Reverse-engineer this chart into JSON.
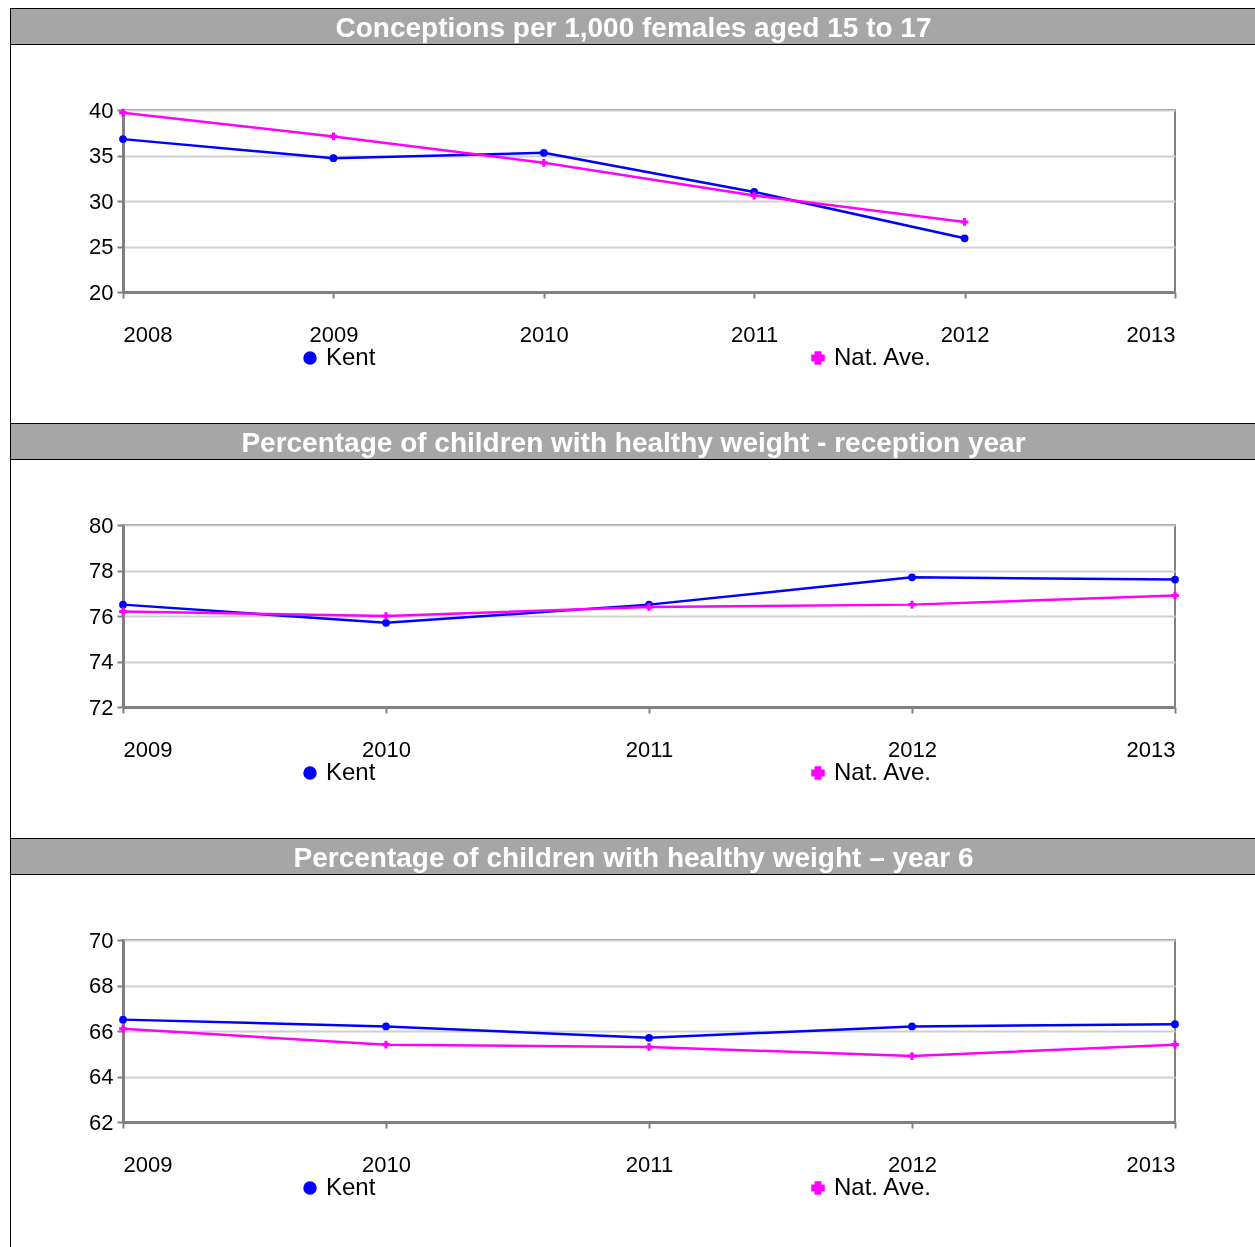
{
  "chart_data": [
    {
      "type": "line",
      "title": "Conceptions per 1,000 females aged 15 to 17",
      "x": [
        2008,
        2009,
        2010,
        2011,
        2012
      ],
      "xlim": [
        2008,
        2013
      ],
      "xticks": [
        2008,
        2009,
        2010,
        2011,
        2012,
        2013
      ],
      "ylim": [
        20,
        40
      ],
      "yticks": [
        20,
        25,
        30,
        35,
        40
      ],
      "grid": "y",
      "legend": "bottom",
      "series": [
        {
          "name": "Kent",
          "color": "#0000ff",
          "marker": "circle",
          "values": [
            36.8,
            34.7,
            35.3,
            31.0,
            25.9
          ]
        },
        {
          "name": "Nat. Ave.",
          "color": "#ff00ff",
          "marker": "cross",
          "values": [
            39.7,
            37.1,
            34.2,
            30.6,
            27.7
          ]
        }
      ]
    },
    {
      "type": "line",
      "title": "Percentage of children with healthy weight - reception year",
      "x": [
        2009,
        2010,
        2011,
        2012,
        2013
      ],
      "xlim": [
        2009,
        2013
      ],
      "xticks": [
        2009,
        2010,
        2011,
        2012,
        2013
      ],
      "ylim": [
        72,
        80
      ],
      "yticks": [
        72,
        74,
        76,
        78,
        80
      ],
      "grid": "y",
      "legend": "bottom",
      "series": [
        {
          "name": "Kent",
          "color": "#0000ff",
          "marker": "circle",
          "values": [
            76.5,
            75.7,
            76.5,
            77.7,
            77.6
          ]
        },
        {
          "name": "Nat. Ave.",
          "color": "#ff00ff",
          "marker": "cross",
          "values": [
            76.2,
            76.0,
            76.4,
            76.5,
            76.9
          ]
        }
      ]
    },
    {
      "type": "line",
      "title": "Percentage of children with healthy weight – year 6",
      "x": [
        2009,
        2010,
        2011,
        2012,
        2013
      ],
      "xlim": [
        2009,
        2013
      ],
      "xticks": [
        2009,
        2010,
        2011,
        2012,
        2013
      ],
      "ylim": [
        62,
        70
      ],
      "yticks": [
        62,
        64,
        66,
        68,
        70
      ],
      "grid": "y",
      "legend": "bottom",
      "series": [
        {
          "name": "Kent",
          "color": "#0000ff",
          "marker": "circle",
          "values": [
            66.5,
            66.2,
            65.7,
            66.2,
            66.3
          ]
        },
        {
          "name": "Nat. Ave.",
          "color": "#ff00ff",
          "marker": "cross",
          "values": [
            66.1,
            65.4,
            65.3,
            64.9,
            65.4
          ]
        }
      ]
    }
  ]
}
